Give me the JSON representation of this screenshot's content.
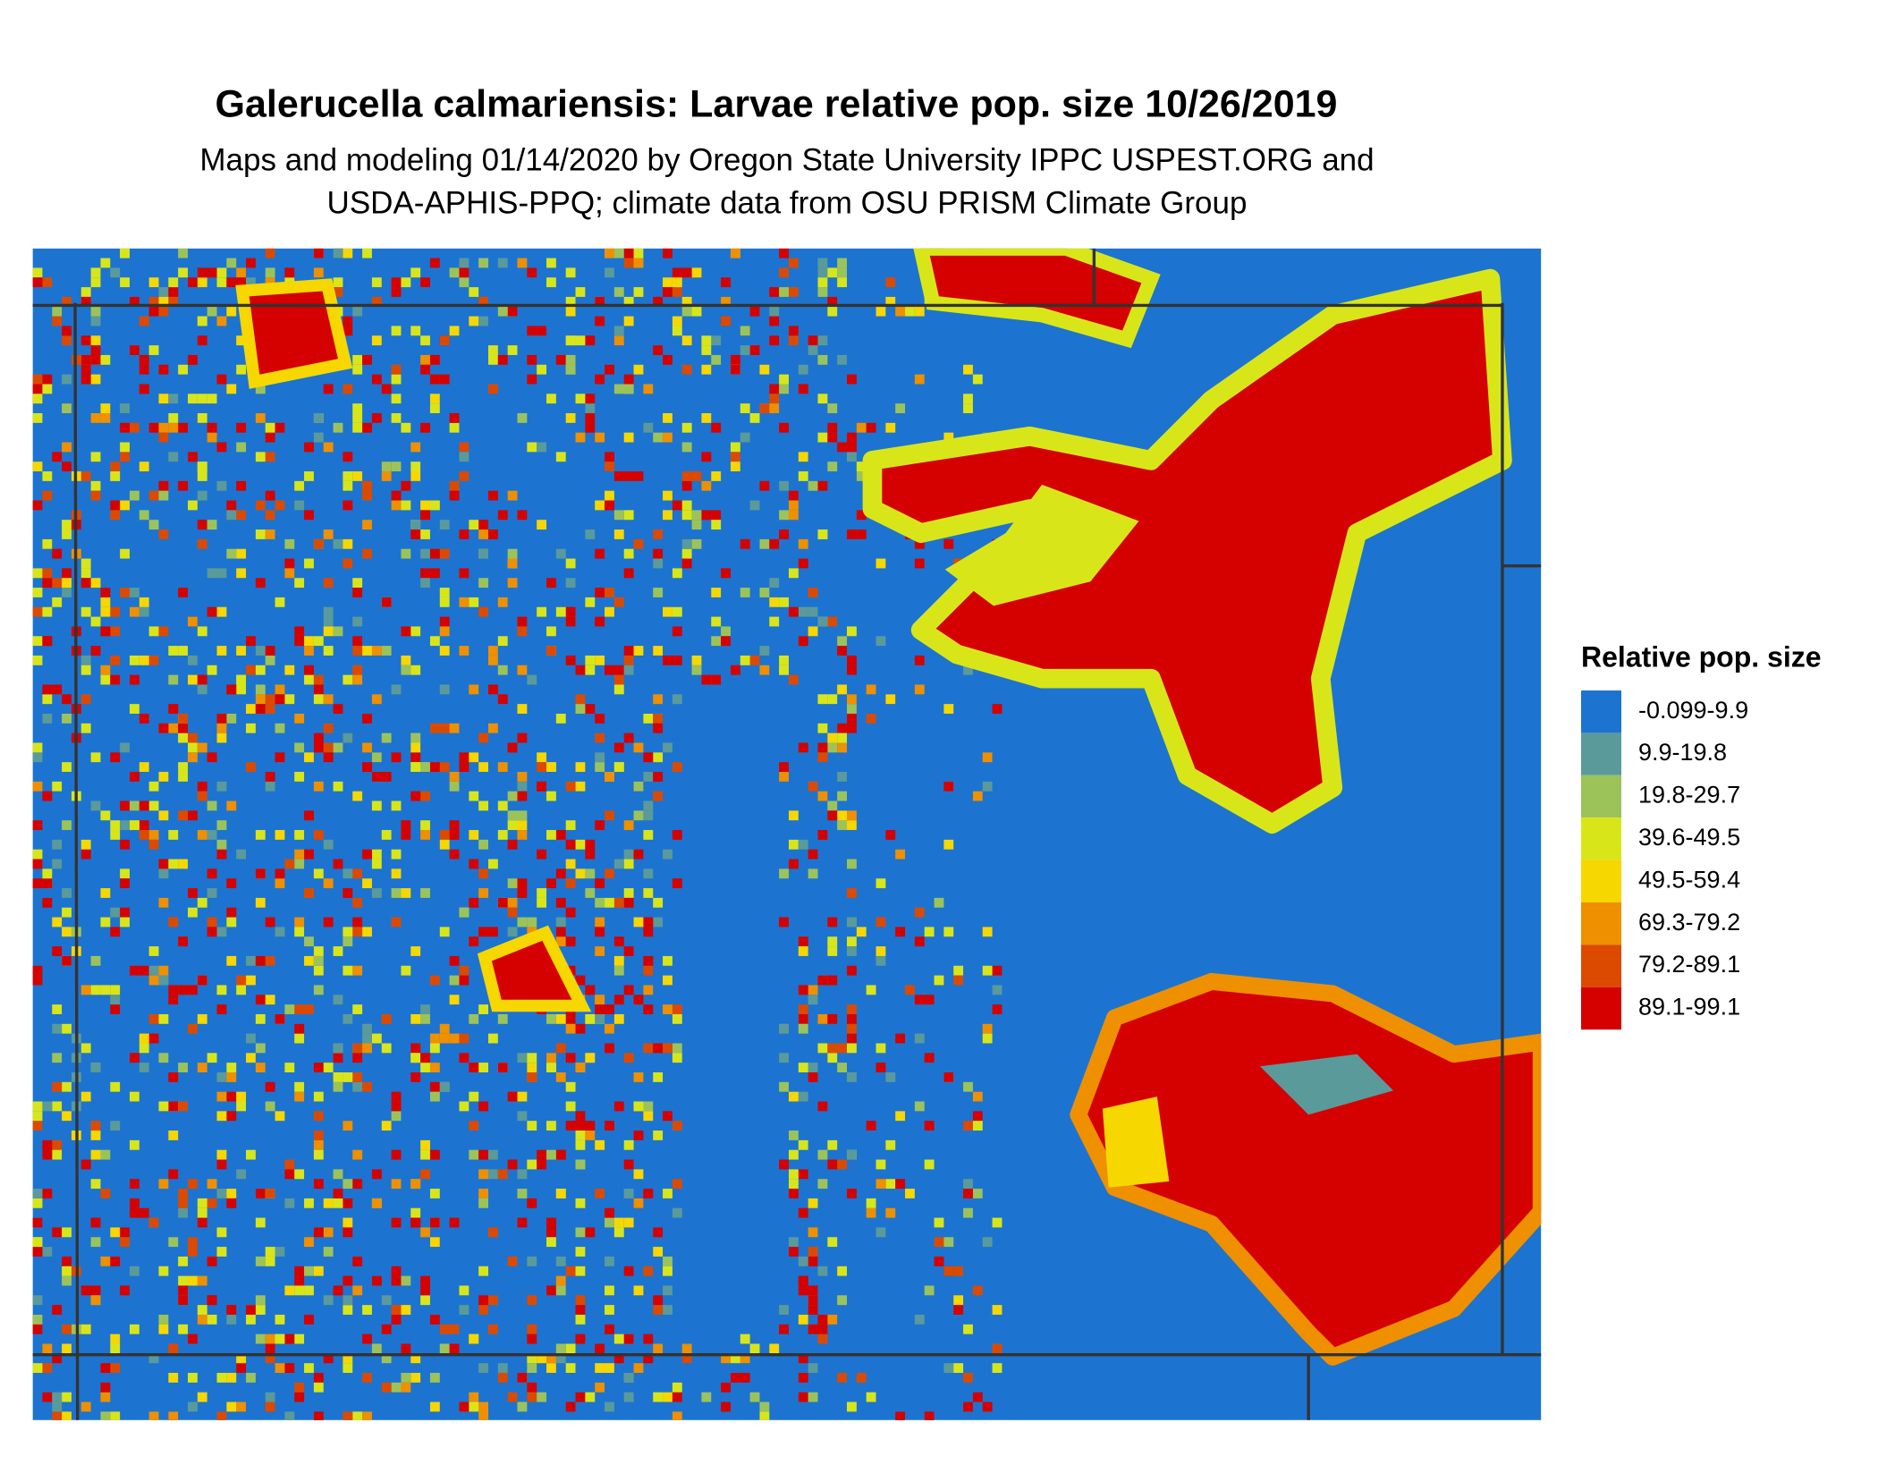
{
  "chart_data": {
    "type": "raster-map",
    "title": "Galerucella calmariensis: Larvae relative pop. size 10/26/2019",
    "subtitle": [
      "Maps and modeling 01/14/2020 by Oregon State University IPPC USPEST.ORG and",
      "USDA-APHIS-PPQ; climate data from OSU PRISM Climate Group"
    ],
    "legend": {
      "title": "Relative pop. size",
      "entries": [
        {
          "label": "-0.099-9.9",
          "color": "#1c74d0"
        },
        {
          "label": "9.9-19.8",
          "color": "#5a9a9a"
        },
        {
          "label": "19.8-29.7",
          "color": "#9cc35a"
        },
        {
          "label": "39.6-49.5",
          "color": "#d8e619"
        },
        {
          "label": "49.5-59.4",
          "color": "#f6d700"
        },
        {
          "label": "69.3-79.2",
          "color": "#ee9000"
        },
        {
          "label": "79.2-89.1",
          "color": "#dc4a00"
        },
        {
          "label": "89.1-99.1",
          "color": "#d50000"
        }
      ]
    }
  }
}
